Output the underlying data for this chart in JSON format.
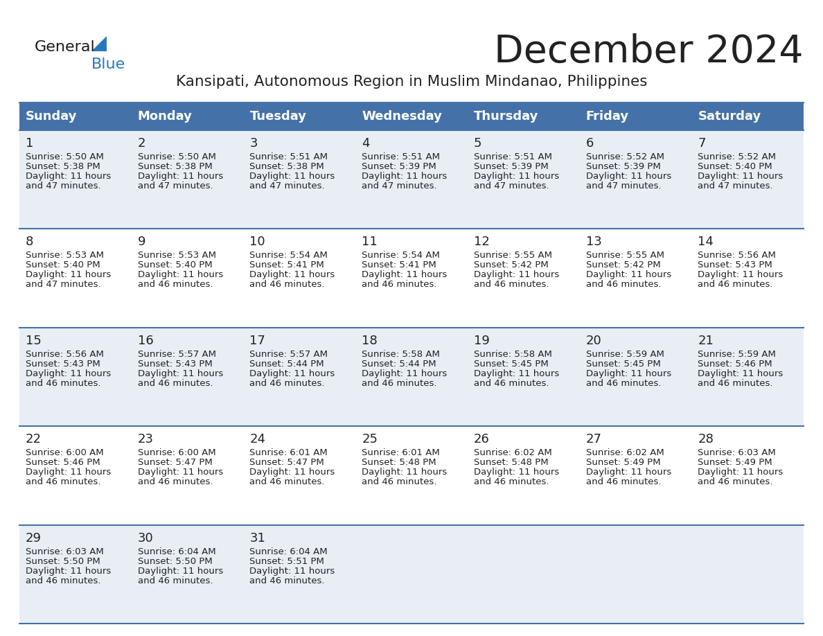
{
  "title": "December 2024",
  "subtitle": "Kansipati, Autonomous Region in Muslim Mindanao, Philippines",
  "days_of_week": [
    "Sunday",
    "Monday",
    "Tuesday",
    "Wednesday",
    "Thursday",
    "Friday",
    "Saturday"
  ],
  "header_bg": "#4472a8",
  "header_text": "#ffffff",
  "row_bg_odd": "#e8eef4",
  "row_bg_even": "#ffffff",
  "divider_color": "#4472a8",
  "text_color": "#222222",
  "calendar_data": [
    {
      "day": 1,
      "col": 0,
      "row": 0,
      "sunrise": "5:50 AM",
      "sunset": "5:38 PM",
      "daylight": "11 hours and 47 minutes."
    },
    {
      "day": 2,
      "col": 1,
      "row": 0,
      "sunrise": "5:50 AM",
      "sunset": "5:38 PM",
      "daylight": "11 hours and 47 minutes."
    },
    {
      "day": 3,
      "col": 2,
      "row": 0,
      "sunrise": "5:51 AM",
      "sunset": "5:38 PM",
      "daylight": "11 hours and 47 minutes."
    },
    {
      "day": 4,
      "col": 3,
      "row": 0,
      "sunrise": "5:51 AM",
      "sunset": "5:39 PM",
      "daylight": "11 hours and 47 minutes."
    },
    {
      "day": 5,
      "col": 4,
      "row": 0,
      "sunrise": "5:51 AM",
      "sunset": "5:39 PM",
      "daylight": "11 hours and 47 minutes."
    },
    {
      "day": 6,
      "col": 5,
      "row": 0,
      "sunrise": "5:52 AM",
      "sunset": "5:39 PM",
      "daylight": "11 hours and 47 minutes."
    },
    {
      "day": 7,
      "col": 6,
      "row": 0,
      "sunrise": "5:52 AM",
      "sunset": "5:40 PM",
      "daylight": "11 hours and 47 minutes."
    },
    {
      "day": 8,
      "col": 0,
      "row": 1,
      "sunrise": "5:53 AM",
      "sunset": "5:40 PM",
      "daylight": "11 hours and 47 minutes."
    },
    {
      "day": 9,
      "col": 1,
      "row": 1,
      "sunrise": "5:53 AM",
      "sunset": "5:40 PM",
      "daylight": "11 hours and 46 minutes."
    },
    {
      "day": 10,
      "col": 2,
      "row": 1,
      "sunrise": "5:54 AM",
      "sunset": "5:41 PM",
      "daylight": "11 hours and 46 minutes."
    },
    {
      "day": 11,
      "col": 3,
      "row": 1,
      "sunrise": "5:54 AM",
      "sunset": "5:41 PM",
      "daylight": "11 hours and 46 minutes."
    },
    {
      "day": 12,
      "col": 4,
      "row": 1,
      "sunrise": "5:55 AM",
      "sunset": "5:42 PM",
      "daylight": "11 hours and 46 minutes."
    },
    {
      "day": 13,
      "col": 5,
      "row": 1,
      "sunrise": "5:55 AM",
      "sunset": "5:42 PM",
      "daylight": "11 hours and 46 minutes."
    },
    {
      "day": 14,
      "col": 6,
      "row": 1,
      "sunrise": "5:56 AM",
      "sunset": "5:43 PM",
      "daylight": "11 hours and 46 minutes."
    },
    {
      "day": 15,
      "col": 0,
      "row": 2,
      "sunrise": "5:56 AM",
      "sunset": "5:43 PM",
      "daylight": "11 hours and 46 minutes."
    },
    {
      "day": 16,
      "col": 1,
      "row": 2,
      "sunrise": "5:57 AM",
      "sunset": "5:43 PM",
      "daylight": "11 hours and 46 minutes."
    },
    {
      "day": 17,
      "col": 2,
      "row": 2,
      "sunrise": "5:57 AM",
      "sunset": "5:44 PM",
      "daylight": "11 hours and 46 minutes."
    },
    {
      "day": 18,
      "col": 3,
      "row": 2,
      "sunrise": "5:58 AM",
      "sunset": "5:44 PM",
      "daylight": "11 hours and 46 minutes."
    },
    {
      "day": 19,
      "col": 4,
      "row": 2,
      "sunrise": "5:58 AM",
      "sunset": "5:45 PM",
      "daylight": "11 hours and 46 minutes."
    },
    {
      "day": 20,
      "col": 5,
      "row": 2,
      "sunrise": "5:59 AM",
      "sunset": "5:45 PM",
      "daylight": "11 hours and 46 minutes."
    },
    {
      "day": 21,
      "col": 6,
      "row": 2,
      "sunrise": "5:59 AM",
      "sunset": "5:46 PM",
      "daylight": "11 hours and 46 minutes."
    },
    {
      "day": 22,
      "col": 0,
      "row": 3,
      "sunrise": "6:00 AM",
      "sunset": "5:46 PM",
      "daylight": "11 hours and 46 minutes."
    },
    {
      "day": 23,
      "col": 1,
      "row": 3,
      "sunrise": "6:00 AM",
      "sunset": "5:47 PM",
      "daylight": "11 hours and 46 minutes."
    },
    {
      "day": 24,
      "col": 2,
      "row": 3,
      "sunrise": "6:01 AM",
      "sunset": "5:47 PM",
      "daylight": "11 hours and 46 minutes."
    },
    {
      "day": 25,
      "col": 3,
      "row": 3,
      "sunrise": "6:01 AM",
      "sunset": "5:48 PM",
      "daylight": "11 hours and 46 minutes."
    },
    {
      "day": 26,
      "col": 4,
      "row": 3,
      "sunrise": "6:02 AM",
      "sunset": "5:48 PM",
      "daylight": "11 hours and 46 minutes."
    },
    {
      "day": 27,
      "col": 5,
      "row": 3,
      "sunrise": "6:02 AM",
      "sunset": "5:49 PM",
      "daylight": "11 hours and 46 minutes."
    },
    {
      "day": 28,
      "col": 6,
      "row": 3,
      "sunrise": "6:03 AM",
      "sunset": "5:49 PM",
      "daylight": "11 hours and 46 minutes."
    },
    {
      "day": 29,
      "col": 0,
      "row": 4,
      "sunrise": "6:03 AM",
      "sunset": "5:50 PM",
      "daylight": "11 hours and 46 minutes."
    },
    {
      "day": 30,
      "col": 1,
      "row": 4,
      "sunrise": "6:04 AM",
      "sunset": "5:50 PM",
      "daylight": "11 hours and 46 minutes."
    },
    {
      "day": 31,
      "col": 2,
      "row": 4,
      "sunrise": "6:04 AM",
      "sunset": "5:51 PM",
      "daylight": "11 hours and 46 minutes."
    }
  ],
  "logo_general_color": "#1a1a1a",
  "logo_blue_color": "#2878c0",
  "logo_triangle_color": "#2878c0",
  "fig_width": 11.88,
  "fig_height": 9.18,
  "dpi": 100
}
